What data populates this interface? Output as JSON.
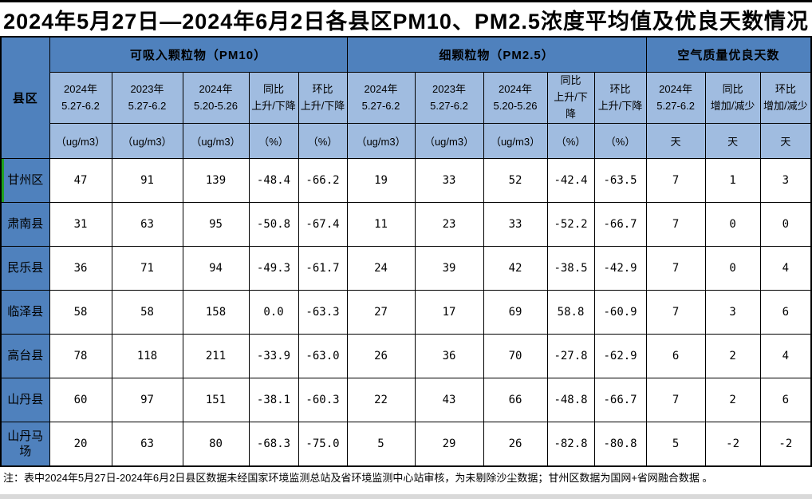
{
  "title": "2024年5月27日—2024年6月2日各县区PM10、PM2.5浓度平均值及优良天数情况",
  "table": {
    "corner_header": "县区",
    "groups": [
      {
        "label": "可吸入颗粒物（PM10）",
        "span": 5
      },
      {
        "label": "细颗粒物（PM2.5）",
        "span": 5
      },
      {
        "label": "空气质量优良天数",
        "span": 3
      }
    ],
    "sub_headers": [
      "2024年\n5.27-6.2",
      "2023年\n5.27-6.2",
      "2024年\n5.20-5.26",
      "同比\n上升/下降",
      "环比\n上升/下降",
      "2024年\n5.27-6.2",
      "2023年\n5.27-6.2",
      "2024年\n5.20-5.26",
      "同比\n上升/下降",
      "环比\n上升/下降",
      "2024年\n5.27-6.2",
      "同比\n增加/减少",
      "环比\n增加/减少"
    ],
    "unit_headers": [
      "（ug/m3）",
      "（ug/m3）",
      "（ug/m3）",
      "（%）",
      "（%）",
      "（ug/m3）",
      "（ug/m3）",
      "（ug/m3）",
      "（%）",
      "（%）",
      "天",
      "天",
      "天"
    ],
    "rows": [
      {
        "name": "甘州区",
        "values": [
          "47",
          "91",
          "139",
          "-48.4",
          "-66.2",
          "19",
          "33",
          "52",
          "-42.4",
          "-63.5",
          "7",
          "1",
          "3"
        ]
      },
      {
        "name": "肃南县",
        "values": [
          "31",
          "63",
          "95",
          "-50.8",
          "-67.4",
          "11",
          "23",
          "33",
          "-52.2",
          "-66.7",
          "7",
          "0",
          "0"
        ]
      },
      {
        "name": "民乐县",
        "values": [
          "36",
          "71",
          "94",
          "-49.3",
          "-61.7",
          "24",
          "39",
          "42",
          "-38.5",
          "-42.9",
          "7",
          "0",
          "4"
        ]
      },
      {
        "name": "临泽县",
        "values": [
          "58",
          "58",
          "158",
          "0.0",
          "-63.3",
          "27",
          "17",
          "69",
          "58.8",
          "-60.9",
          "7",
          "3",
          "6"
        ]
      },
      {
        "name": "高台县",
        "values": [
          "78",
          "118",
          "211",
          "-33.9",
          "-63.0",
          "26",
          "36",
          "70",
          "-27.8",
          "-62.9",
          "6",
          "2",
          "4"
        ]
      },
      {
        "name": "山丹县",
        "values": [
          "60",
          "97",
          "151",
          "-38.1",
          "-60.3",
          "22",
          "43",
          "66",
          "-48.8",
          "-66.7",
          "7",
          "2",
          "6"
        ]
      },
      {
        "name": "山丹马场",
        "values": [
          "20",
          "63",
          "80",
          "-68.3",
          "-75.0",
          "5",
          "29",
          "26",
          "-82.8",
          "-80.8",
          "5",
          "-2",
          "-2"
        ]
      }
    ]
  },
  "note": "注：表中2024年5月27日-2024年6月2日县区数据未经国家环境监测总站及省环境监测中心站审核，为未剔除沙尘数据；甘州区数据为国网+省网融合数据 。",
  "colors": {
    "header_dark_blue": "#4F81BD",
    "header_light_blue": "#A0BCE0",
    "row_label_blue": "#4F81BD",
    "selection_green": "#21A121",
    "grid_line": "#000000",
    "bottom_strip_gray": "#D9D9D9"
  }
}
